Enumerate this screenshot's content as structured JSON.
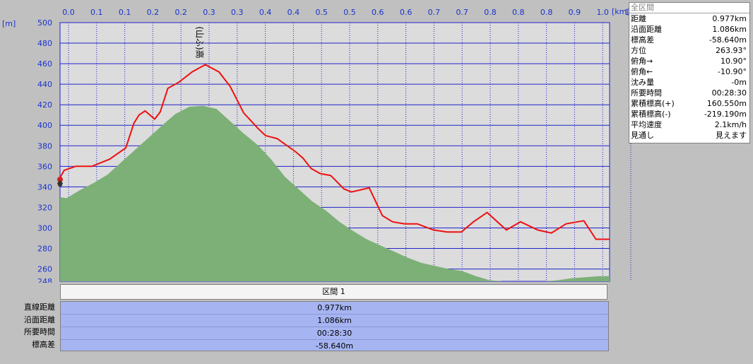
{
  "chart_data": {
    "type": "area",
    "x_unit": "[km]",
    "y_unit": "[m]",
    "x_ticks": [
      "0.0",
      "0.1",
      "0.1",
      "0.2",
      "0.2",
      "0.3",
      "0.3",
      "0.4",
      "0.4",
      "0.5",
      "0.5",
      "0.6",
      "0.6",
      "0.7",
      "0.7",
      "0.8",
      "0.8",
      "0.8",
      "0.9",
      "1.0",
      "1.0"
    ],
    "y_ticks": [
      500,
      480,
      460,
      440,
      420,
      400,
      380,
      360,
      340,
      320,
      300,
      280,
      260,
      248
    ],
    "xlim": [
      0,
      1.086
    ],
    "ylim": [
      248,
      500
    ],
    "terrain_profile": {
      "x": [
        0,
        0.013,
        0.04,
        0.067,
        0.094,
        0.121,
        0.148,
        0.175,
        0.202,
        0.228,
        0.255,
        0.282,
        0.309,
        0.336,
        0.363,
        0.39,
        0.417,
        0.444,
        0.471,
        0.498,
        0.525,
        0.552,
        0.579,
        0.606,
        0.633,
        0.66,
        0.687,
        0.714,
        0.741,
        0.768,
        0.795,
        0.822,
        0.849,
        0.876,
        0.903,
        0.93,
        0.957,
        0.984,
        1.011,
        1.038,
        1.065,
        1.086
      ],
      "y": [
        330,
        329,
        337,
        344,
        352,
        364,
        376,
        388,
        400,
        411,
        418,
        419,
        416,
        404,
        392,
        381,
        367,
        350,
        338,
        326,
        317,
        306,
        297,
        289,
        283,
        277,
        271,
        266,
        263,
        260,
        258,
        253,
        249,
        248,
        248,
        248,
        248,
        249,
        251,
        252,
        253,
        253
      ]
    },
    "route_profile": {
      "x": [
        0,
        0.008,
        0.031,
        0.063,
        0.098,
        0.13,
        0.146,
        0.156,
        0.168,
        0.187,
        0.198,
        0.213,
        0.235,
        0.261,
        0.287,
        0.314,
        0.336,
        0.363,
        0.378,
        0.391,
        0.406,
        0.429,
        0.449,
        0.466,
        0.48,
        0.496,
        0.514,
        0.535,
        0.561,
        0.576,
        0.611,
        0.637,
        0.657,
        0.681,
        0.706,
        0.738,
        0.765,
        0.793,
        0.817,
        0.844,
        0.882,
        0.91,
        0.944,
        0.971,
        1.0,
        1.035,
        1.059,
        1.086
      ],
      "y": [
        349,
        356,
        360,
        360,
        367,
        378,
        402,
        410,
        414,
        406,
        413,
        436,
        442,
        452,
        459,
        452,
        438,
        412,
        404,
        397,
        390,
        387,
        380,
        374,
        368,
        358,
        353,
        351,
        338,
        335,
        339,
        312,
        306,
        304,
        304,
        298,
        296,
        296,
        306,
        315,
        298,
        306,
        298,
        295,
        304,
        307,
        289,
        289
      ]
    },
    "landmark_label": "(山ふ)高"
  },
  "colors": {
    "route_line": "#ee1111",
    "terrain_fill": "#7cb077",
    "plot_background": "#dcdcdc",
    "grid_line": "#2222cc",
    "axis_text": "#1a33cc",
    "section_bg": "#a6b4f2"
  },
  "summary": {
    "title": "全区間",
    "rows": [
      {
        "label": "距離",
        "value": "0.977km"
      },
      {
        "label": "沿面距離",
        "value": "1.086km"
      },
      {
        "label": "標高差",
        "value": "-58.640m"
      },
      {
        "label": "方位",
        "value": "263.93°"
      },
      {
        "label": "俯角→",
        "value": "10.90°"
      },
      {
        "label": "俯角←",
        "value": "-10.90°"
      },
      {
        "label": "沈み量",
        "value": "-0m"
      },
      {
        "label": "所要時間",
        "value": "00:28:30"
      },
      {
        "label": "累積標高(+)",
        "value": "160.550m"
      },
      {
        "label": "累積標高(-)",
        "value": "-219.190m"
      },
      {
        "label": "平均速度",
        "value": "2.1km/h"
      },
      {
        "label": "見通し",
        "value": "見えます"
      }
    ]
  },
  "section": {
    "header": "区間 1",
    "rows": [
      {
        "label": "直線距離",
        "value": "0.977km"
      },
      {
        "label": "沿面距離",
        "value": "1.086km"
      },
      {
        "label": "所要時間",
        "value": "00:28:30"
      },
      {
        "label": "標高差",
        "value": "-58.640m"
      }
    ]
  }
}
